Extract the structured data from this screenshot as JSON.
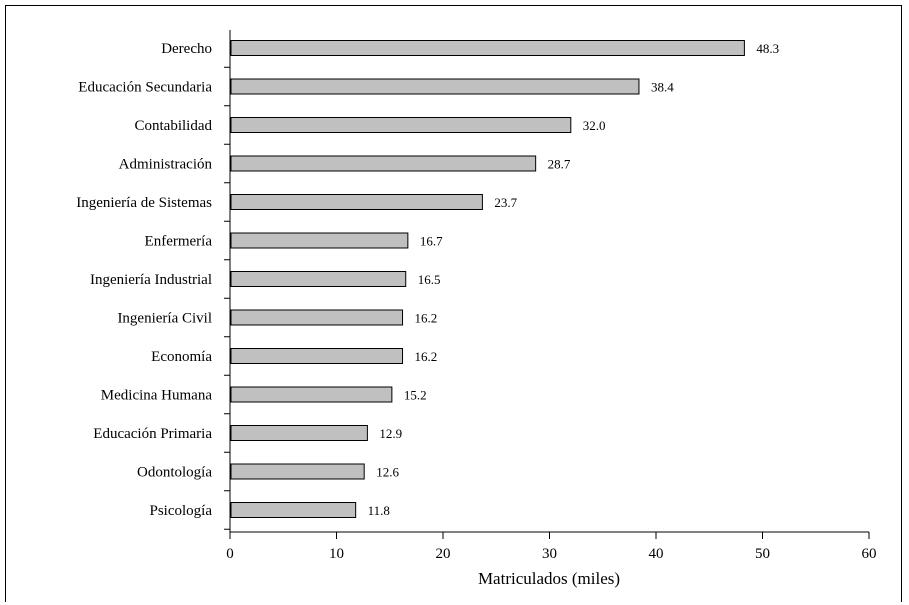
{
  "chart_data": {
    "type": "bar",
    "orientation": "horizontal",
    "categories": [
      "Derecho",
      "Educación Secundaria",
      "Contabilidad",
      "Administración",
      "Ingeniería de Sistemas",
      "Enfermería",
      "Ingeniería Industrial",
      "Ingeniería Civil",
      "Economía",
      "Medicina Humana",
      "Educación Primaria",
      "Odontología",
      "Psicología"
    ],
    "values": [
      48.3,
      38.4,
      32.0,
      28.7,
      23.7,
      16.7,
      16.5,
      16.2,
      16.2,
      15.2,
      12.9,
      12.6,
      11.8
    ],
    "value_labels": [
      "48.3",
      "38.4",
      "32.0",
      "28.7",
      "23.7",
      "16.7",
      "16.5",
      "16.2",
      "16.2",
      "15.2",
      "12.9",
      "12.6",
      "11.8"
    ],
    "xlabel": "Matriculados (miles)",
    "xlim": [
      0,
      60
    ],
    "xticks": [
      0,
      10,
      20,
      30,
      40,
      50,
      60
    ],
    "xtick_labels": [
      "0",
      "10",
      "20",
      "30",
      "40",
      "50",
      "60"
    ],
    "grid": false,
    "colors": {
      "bar_fill": "#c0c0c0",
      "bar_stroke": "#000000"
    }
  }
}
